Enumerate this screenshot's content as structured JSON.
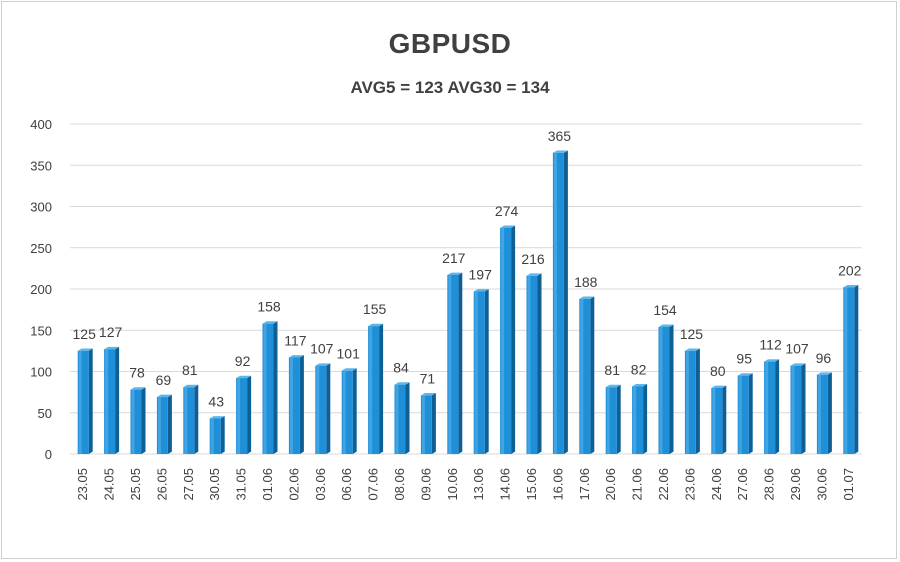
{
  "chart_data": {
    "type": "bar",
    "title": "GBPUSD",
    "subtitle": "AVG5 = 123 AVG30 = 134",
    "categories": [
      "23.05",
      "24.05",
      "25.05",
      "26.05",
      "27.05",
      "30.05",
      "31.05",
      "01.06",
      "02.06",
      "03.06",
      "06.06",
      "07.06",
      "08.06",
      "09.06",
      "10.06",
      "13.06",
      "14.06",
      "15.06",
      "16.06",
      "17.06",
      "20.06",
      "21.06",
      "22.06",
      "23.06",
      "24.06",
      "27.06",
      "28.06",
      "29.06",
      "30.06",
      "01.07"
    ],
    "values": [
      125,
      127,
      78,
      69,
      81,
      43,
      92,
      158,
      117,
      107,
      101,
      155,
      84,
      71,
      217,
      197,
      274,
      216,
      365,
      188,
      81,
      82,
      154,
      125,
      80,
      95,
      112,
      107,
      96,
      202
    ],
    "ylim": [
      0,
      400
    ],
    "yticks": [
      0,
      50,
      100,
      150,
      200,
      250,
      300,
      350,
      400
    ],
    "grid": true,
    "legend": "none",
    "colors": {
      "bar_face": "#1f8fd8",
      "bar_light": "#5cb6ee",
      "bar_dark": "#0e5f96",
      "grid": "#d9d9d9",
      "text": "#404040"
    }
  }
}
